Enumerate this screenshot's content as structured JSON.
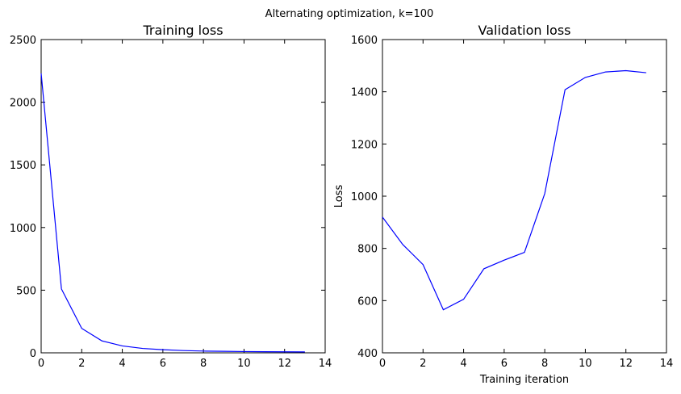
{
  "figure": {
    "suptitle": "Alternating optimization, k=100"
  },
  "chart_data": [
    {
      "type": "line",
      "title": "Training loss",
      "xlabel": "",
      "ylabel": "",
      "xlim": [
        0,
        14
      ],
      "ylim": [
        0,
        2500
      ],
      "xticks": [
        0,
        2,
        4,
        6,
        8,
        10,
        12,
        14
      ],
      "yticks": [
        0,
        500,
        1000,
        1500,
        2000,
        2500
      ],
      "grid": false,
      "line_color": "#0000ff",
      "series": [
        {
          "x": [
            0,
            1,
            2,
            3,
            4,
            5,
            6,
            7,
            8,
            9,
            10,
            11,
            12,
            13
          ],
          "values": [
            2230,
            510,
            195,
            95,
            55,
            35,
            25,
            18,
            14,
            12,
            10,
            9,
            8,
            7
          ]
        }
      ]
    },
    {
      "type": "line",
      "title": "Validation loss",
      "xlabel": "Training iteration",
      "ylabel": "Loss",
      "xlim": [
        0,
        14
      ],
      "ylim": [
        400,
        1600
      ],
      "xticks": [
        0,
        2,
        4,
        6,
        8,
        10,
        12,
        14
      ],
      "yticks": [
        400,
        600,
        800,
        1000,
        1200,
        1400,
        1600
      ],
      "grid": false,
      "line_color": "#0000ff",
      "series": [
        {
          "x": [
            0,
            1,
            2,
            3,
            4,
            5,
            6,
            7,
            8,
            9,
            10,
            11,
            12,
            13
          ],
          "values": [
            920,
            815,
            738,
            565,
            605,
            722,
            755,
            785,
            1010,
            1408,
            1455,
            1476,
            1481,
            1473
          ]
        }
      ]
    }
  ]
}
